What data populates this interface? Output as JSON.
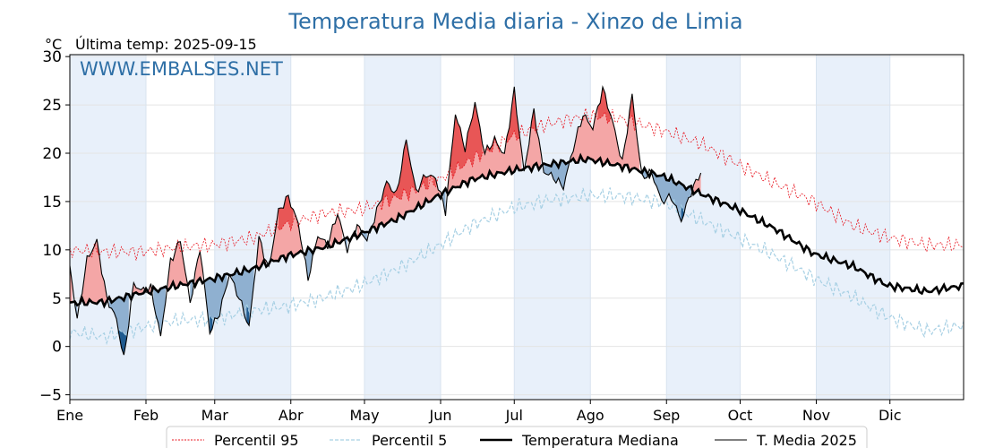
{
  "chart_data": {
    "type": "area",
    "title": "Temperatura Media diaria - Xinzo de Limia",
    "unit": "°C",
    "subtitle": "Última temp: 2025-09-15",
    "watermark": "WWW.EMBALSES.NET",
    "ylim": [
      -5.5,
      30.2
    ],
    "yticks": [
      -5,
      0,
      5,
      10,
      15,
      20,
      25,
      30
    ],
    "ytick_labels": [
      "−5",
      "0",
      "5",
      "10",
      "15",
      "20",
      "25",
      "30"
    ],
    "months": [
      "Ene",
      "Feb",
      "Mar",
      "Abr",
      "May",
      "Jun",
      "Jul",
      "Ago",
      "Sep",
      "Oct",
      "Nov",
      "Dic"
    ],
    "month_start_days": [
      1,
      32,
      60,
      91,
      121,
      152,
      182,
      213,
      244,
      274,
      305,
      335
    ],
    "days_in_year": 365,
    "last_day": 258,
    "grid": true,
    "legend_placement": "bottom-center",
    "colors": {
      "p95": "#e8141e",
      "p5": "#a7d0e4",
      "median": "#000000",
      "current": "#000000",
      "above": "#f4a6a6",
      "above_strong": "#e85656",
      "below": "#8fb0d0",
      "below_strong": "#1f5a8f",
      "band": "#e8f0fa",
      "title": "#2e6fa6"
    },
    "series": [
      {
        "name": "Percentil 95",
        "key": "p95",
        "anchor_days": [
          1,
          15,
          31,
          45,
          59,
          75,
          90,
          105,
          120,
          135,
          151,
          165,
          181,
          195,
          212,
          225,
          243,
          258,
          273,
          288,
          304,
          320,
          334,
          350,
          365
        ],
        "anchor_values": [
          10.0,
          9.8,
          9.8,
          10.3,
          10.5,
          11.2,
          12.7,
          13.8,
          14.2,
          15.5,
          17.2,
          19.4,
          21.7,
          23.0,
          23.9,
          23.6,
          22.3,
          21.0,
          18.9,
          16.9,
          15.0,
          12.5,
          11.3,
          10.5,
          10.5
        ]
      },
      {
        "name": "Percentil 5",
        "key": "p5",
        "anchor_days": [
          1,
          15,
          31,
          45,
          59,
          75,
          90,
          105,
          120,
          135,
          151,
          165,
          181,
          195,
          212,
          225,
          243,
          258,
          273,
          288,
          304,
          320,
          334,
          350,
          365
        ],
        "anchor_values": [
          1.5,
          1.0,
          2.0,
          2.7,
          2.8,
          3.7,
          4.2,
          5.1,
          6.4,
          8.1,
          10.4,
          12.6,
          14.3,
          15.1,
          15.6,
          15.6,
          14.9,
          13.1,
          11.3,
          9.4,
          7.1,
          5.1,
          3.1,
          1.6,
          2.2
        ]
      },
      {
        "name": "Temperatura Mediana",
        "key": "median",
        "anchor_days": [
          1,
          15,
          31,
          45,
          59,
          75,
          90,
          105,
          120,
          135,
          151,
          165,
          181,
          195,
          212,
          225,
          243,
          258,
          273,
          288,
          304,
          320,
          334,
          350,
          365
        ],
        "anchor_values": [
          4.5,
          4.6,
          5.6,
          6.3,
          7.0,
          8.0,
          9.4,
          10.3,
          11.7,
          13.3,
          15.6,
          17.3,
          18.2,
          18.8,
          19.4,
          18.7,
          17.6,
          15.8,
          14.2,
          12.2,
          9.6,
          8.3,
          6.3,
          5.7,
          6.3
        ]
      },
      {
        "name": "T. Media 2025",
        "key": "current",
        "days": [
          1,
          4,
          8,
          12,
          16,
          20,
          23,
          27,
          30,
          34,
          38,
          42,
          46,
          50,
          54,
          58,
          62,
          66,
          70,
          74,
          78,
          82,
          86,
          90,
          94,
          98,
          102,
          106,
          110,
          114,
          118,
          122,
          126,
          130,
          134,
          138,
          142,
          146,
          150,
          154,
          158,
          162,
          166,
          170,
          174,
          178,
          182,
          186,
          190,
          194,
          198,
          202,
          206,
          210,
          214,
          218,
          222,
          226,
          230,
          234,
          238,
          242,
          246,
          250,
          254,
          258
        ],
        "values": [
          8.3,
          2.8,
          9.0,
          10.9,
          5.0,
          2.8,
          -1.3,
          6.5,
          5.8,
          6.0,
          1.0,
          8.8,
          11.0,
          4.5,
          10.2,
          1.5,
          3.5,
          7.5,
          5.0,
          2.0,
          11.2,
          8.0,
          14.0,
          15.5,
          12.7,
          7.0,
          11.5,
          10.5,
          13.8,
          10.0,
          12.5,
          11.0,
          14.0,
          17.0,
          15.7,
          21.4,
          16.0,
          17.8,
          17.4,
          14.0,
          24.1,
          20.5,
          25.2,
          20.0,
          21.4,
          19.8,
          26.5,
          18.0,
          24.5,
          18.1,
          17.5,
          16.5,
          20.5,
          24.0,
          22.6,
          26.7,
          23.3,
          19.0,
          26.0,
          17.5,
          18.0,
          15.0,
          15.5,
          13.0,
          16.0,
          18.0
        ]
      }
    ],
    "legend": [
      "Percentil 95",
      "Percentil 5",
      "Temperatura Mediana",
      "T. Media 2025"
    ]
  }
}
